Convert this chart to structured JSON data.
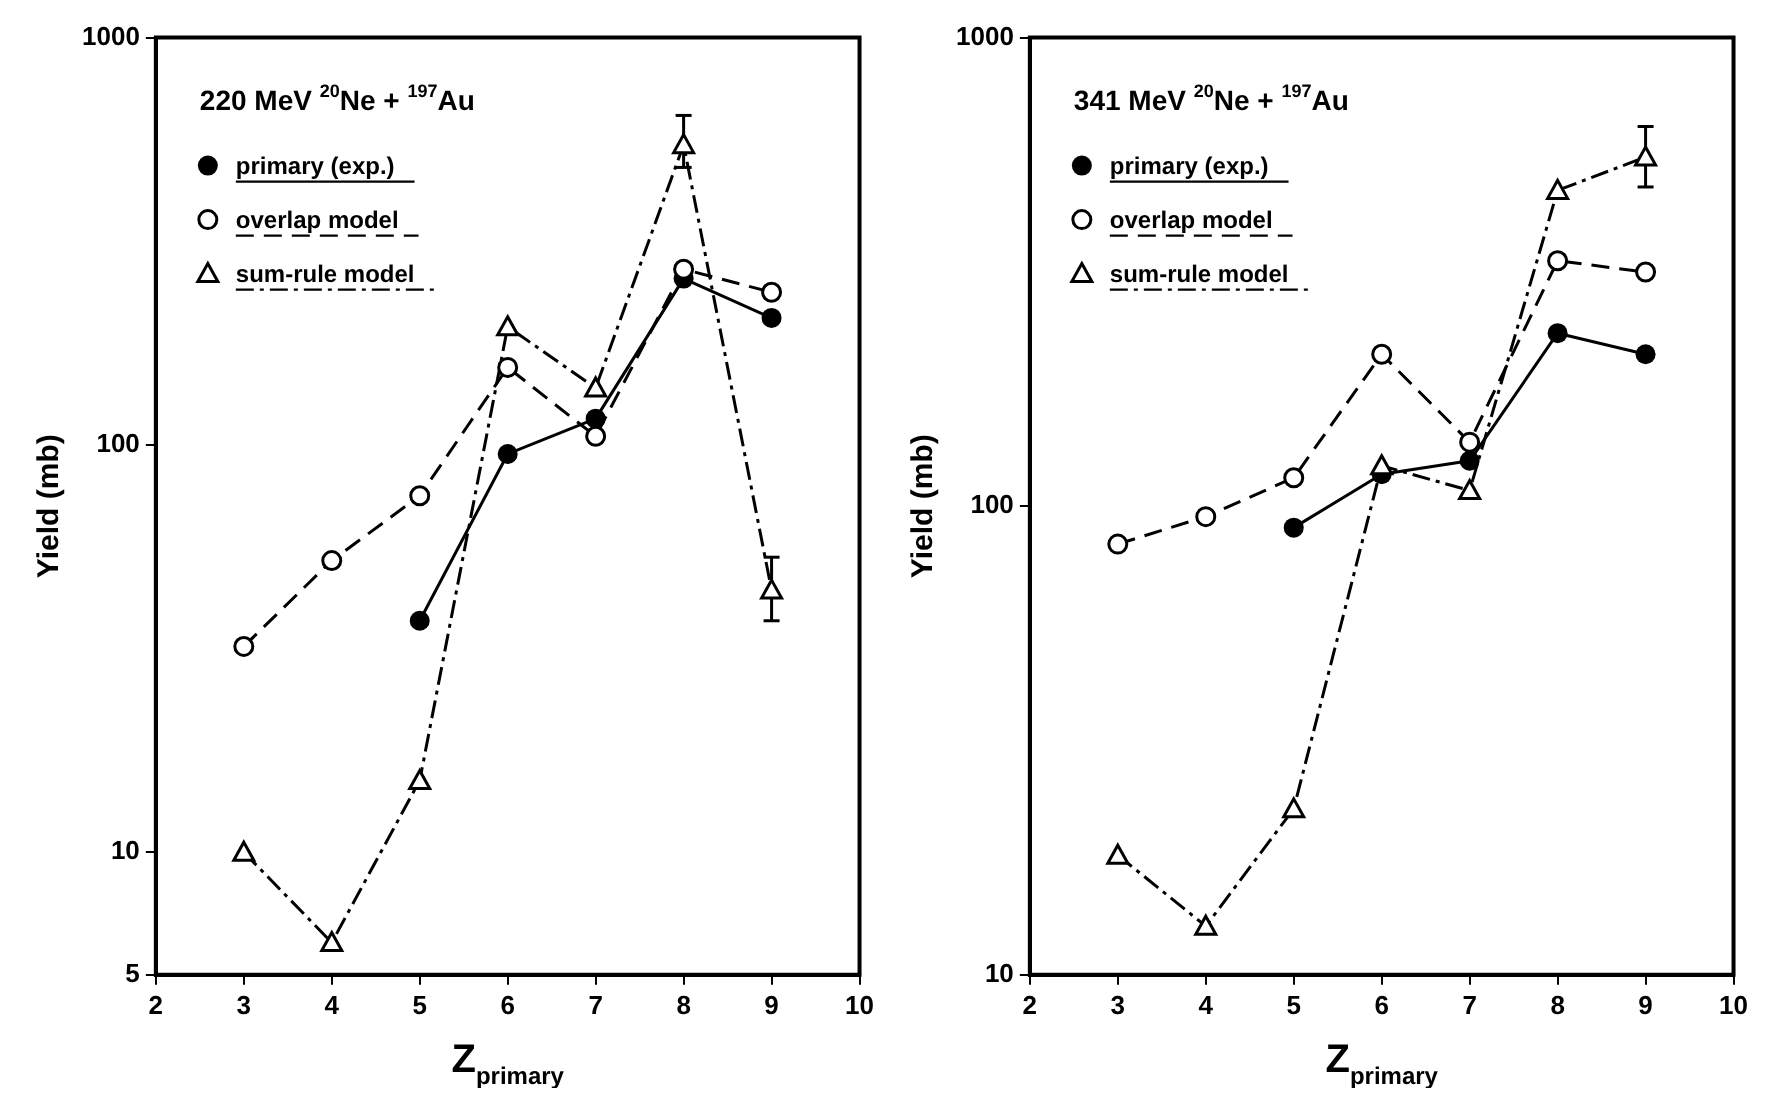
{
  "chart_data": [
    {
      "type": "line",
      "title": "220 MeV $^{20}$Ne + $^{197}$Au",
      "xlabel": "Z$_{primary}$",
      "ylabel": "Yield (mb)",
      "log": "y",
      "x": [
        3,
        4,
        5,
        6,
        7,
        8,
        9
      ],
      "xlim": [
        2,
        10
      ],
      "xticks": [
        2,
        3,
        4,
        5,
        6,
        7,
        8,
        9,
        10
      ],
      "ylim": [
        5,
        1000
      ],
      "yticks": [
        5,
        10,
        100,
        1000
      ],
      "grid": false,
      "legend": "top left",
      "series": [
        {
          "name": "primary (exp.)",
          "color": "#000000",
          "marker": "circle",
          "line_style": "solid",
          "values": [
            null,
            null,
            37,
            95,
            116,
            256,
            205
          ]
        },
        {
          "name": "overlap model",
          "color": "#000000",
          "marker": "open-circle",
          "line_style": "dashed",
          "values": [
            32,
            52,
            75,
            155,
            105,
            270,
            237
          ]
        },
        {
          "name": "sum-rule model",
          "color": "#000000",
          "marker": "triangle",
          "line_style": "dashdot",
          "values": [
            10,
            6,
            15,
            195,
            138,
            546,
            44
          ],
          "errors": [
            null,
            null,
            null,
            null,
            null,
            [
              480,
              644
            ],
            [
              37,
              53
            ]
          ]
        }
      ]
    },
    {
      "type": "line",
      "title": "341 MeV $^{20}$Ne + $^{197}$Au",
      "xlabel": "Z$_{primary}$",
      "ylabel": "Yield (mb)",
      "log": "y",
      "x": [
        3,
        4,
        5,
        6,
        7,
        8,
        9
      ],
      "xlim": [
        2,
        10
      ],
      "xticks": [
        2,
        3,
        4,
        5,
        6,
        7,
        8,
        9,
        10
      ],
      "ylim": [
        10,
        1000
      ],
      "yticks": [
        10,
        100,
        1000
      ],
      "grid": false,
      "legend": "top left",
      "series": [
        {
          "name": "primary (exp.)",
          "color": "#000000",
          "marker": "circle",
          "line_style": "solid",
          "values": [
            null,
            null,
            90,
            117,
            125,
            234,
            211
          ]
        },
        {
          "name": "overlap model",
          "color": "#000000",
          "marker": "open-circle",
          "line_style": "dashed",
          "values": [
            83,
            95,
            115,
            211,
            137,
            334,
            316
          ]
        },
        {
          "name": "sum-rule model",
          "color": "#000000",
          "marker": "triangle",
          "line_style": "dashdot",
          "values": [
            18,
            12.7,
            22.6,
            122,
            108,
            472,
            556
          ],
          "errors": [
            null,
            null,
            null,
            null,
            null,
            null,
            [
              480,
              646
            ]
          ]
        }
      ]
    }
  ]
}
